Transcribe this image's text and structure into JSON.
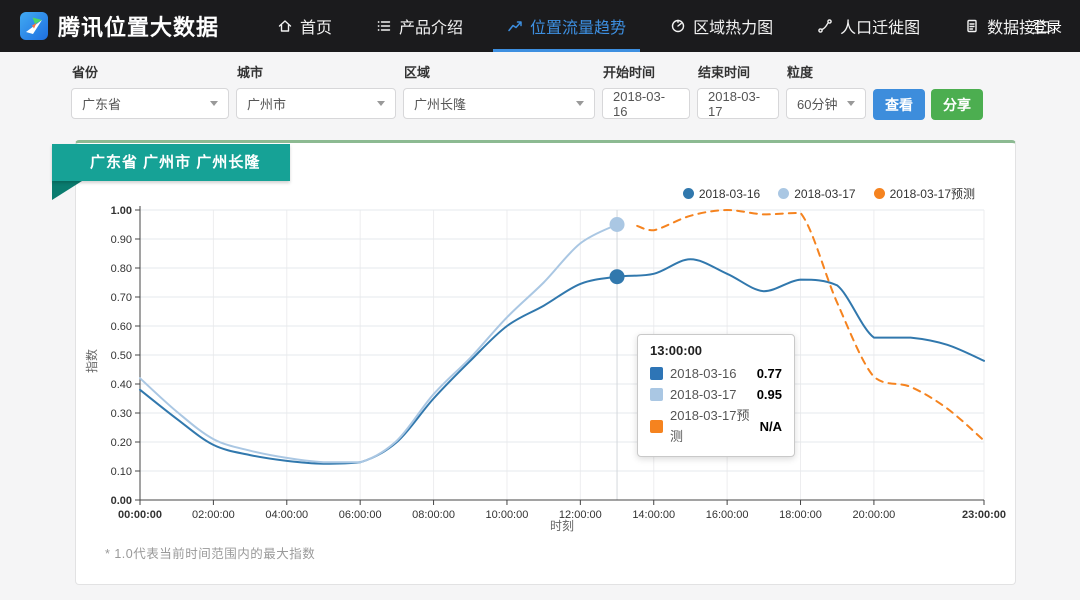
{
  "navbar": {
    "brand": "腾讯位置大数据",
    "items": [
      {
        "label": "首页",
        "icon": "home-icon",
        "active": false
      },
      {
        "label": "产品介绍",
        "icon": "list-icon",
        "active": false
      },
      {
        "label": "位置流量趋势",
        "icon": "trend-icon",
        "active": true
      },
      {
        "label": "区域热力图",
        "icon": "heatmap-icon",
        "active": false
      },
      {
        "label": "人口迁徙图",
        "icon": "migration-icon",
        "active": false
      },
      {
        "label": "数据接口",
        "icon": "api-icon",
        "active": false
      }
    ],
    "login_label": "登录"
  },
  "filters": {
    "province": {
      "label": "省份",
      "value": "广东省"
    },
    "city": {
      "label": "城市",
      "value": "广州市"
    },
    "district": {
      "label": "区域",
      "value": "广州长隆"
    },
    "start": {
      "label": "开始时间",
      "value": "2018-03-16"
    },
    "end": {
      "label": "结束时间",
      "value": "2018-03-17"
    },
    "granularity": {
      "label": "粒度",
      "value": "60分钟"
    },
    "view_button": "查看",
    "share_button": "分享"
  },
  "ribbon": {
    "text": "广东省 广州市 广州长隆"
  },
  "chart_data": {
    "type": "line",
    "xlabel": "时刻",
    "ylabel": "指数",
    "ylim": [
      0,
      1
    ],
    "grid": true,
    "legend_position": "top-right",
    "y_ticks": [
      "0.00",
      "0.10",
      "0.20",
      "0.30",
      "0.40",
      "0.50",
      "0.60",
      "0.70",
      "0.80",
      "0.90",
      "1.00"
    ],
    "x_ticks": [
      "00:00:00",
      "02:00:00",
      "04:00:00",
      "06:00:00",
      "08:00:00",
      "10:00:00",
      "12:00:00",
      "14:00:00",
      "16:00:00",
      "18:00:00",
      "20:00:00",
      "23:00:00"
    ],
    "x_tick_hours": [
      0,
      2,
      4,
      6,
      8,
      10,
      12,
      14,
      16,
      18,
      20,
      23
    ],
    "series": [
      {
        "name": "2018-03-16",
        "color": "#3178ad",
        "style": "solid",
        "x_hours": [
          0,
          1,
          2,
          3,
          4,
          5,
          6,
          7,
          8,
          9,
          10,
          11,
          12,
          13,
          14,
          15,
          16,
          17,
          18,
          19,
          20,
          21,
          22,
          23
        ],
        "values": [
          0.38,
          0.28,
          0.19,
          0.155,
          0.135,
          0.125,
          0.13,
          0.2,
          0.35,
          0.48,
          0.6,
          0.67,
          0.745,
          0.77,
          0.78,
          0.83,
          0.78,
          0.72,
          0.76,
          0.74,
          0.56,
          0.56,
          0.535,
          0.48
        ]
      },
      {
        "name": "2018-03-17",
        "color": "#aac7e3",
        "style": "solid",
        "x_hours": [
          0,
          1,
          2,
          3,
          4,
          5,
          6,
          7,
          8,
          9,
          10,
          11,
          12,
          13
        ],
        "values": [
          0.42,
          0.305,
          0.21,
          0.17,
          0.145,
          0.13,
          0.13,
          0.205,
          0.365,
          0.49,
          0.63,
          0.75,
          0.885,
          0.95
        ]
      },
      {
        "name": "2018-03-17预测",
        "color": "#f5831f",
        "style": "dashed",
        "x_hours": [
          13.55,
          14,
          15,
          16,
          17,
          18,
          19,
          20,
          21,
          22,
          23
        ],
        "values": [
          0.945,
          0.93,
          0.98,
          1.0,
          0.985,
          0.99,
          0.68,
          0.425,
          0.39,
          0.315,
          0.205
        ]
      }
    ],
    "markers": [
      {
        "series": 1,
        "hour": 13,
        "value": 0.95
      },
      {
        "series": 0,
        "hour": 13,
        "value": 0.77
      }
    ],
    "hover_hour": 13
  },
  "tooltip": {
    "title": "13:00:00",
    "rows": [
      {
        "name": "2018-03-16",
        "value": "0.77",
        "color": "#2e75b6"
      },
      {
        "name": "2018-03-17",
        "value": "0.95",
        "color": "#aac7e3"
      },
      {
        "name": "2018-03-17预测",
        "value": "N/A",
        "color": "#f5831f"
      }
    ]
  },
  "footnote": "* 1.0代表当前时间范围内的最大指数"
}
